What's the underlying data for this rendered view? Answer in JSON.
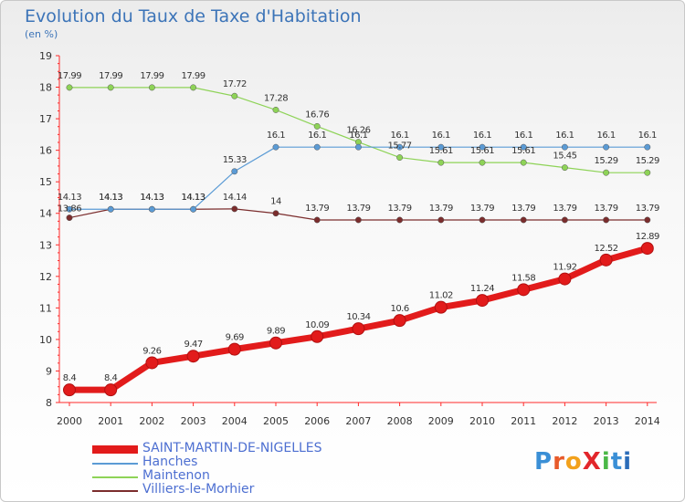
{
  "title": "Evolution du Taux de Taxe d'Habitation",
  "subtitle": "(en %)",
  "logo": {
    "text": "ProXiti",
    "letters": [
      "P",
      "r",
      "o",
      "X",
      "i",
      "t",
      "i"
    ],
    "colors": [
      "#3a8fd6",
      "#e85a2a",
      "#f2a11c",
      "#e2262b",
      "#4bb847",
      "#3a8fd6",
      "#2b6cb8"
    ]
  },
  "chart_data": {
    "type": "line",
    "x": [
      "2000",
      "2001",
      "2002",
      "2003",
      "2004",
      "2005",
      "2006",
      "2007",
      "2008",
      "2009",
      "2010",
      "2011",
      "2012",
      "2013",
      "2014"
    ],
    "ylim": [
      8,
      19
    ],
    "yticks": [
      "8",
      "9",
      "10",
      "11",
      "12",
      "13",
      "14",
      "15",
      "16",
      "17",
      "18",
      "19"
    ],
    "grid": false,
    "legend_position": "bottom-left",
    "series": [
      {
        "name": "SAINT-MARTIN-DE-NIGELLES",
        "color": "#e21b1b",
        "values": [
          8.4,
          8.4,
          9.26,
          9.47,
          9.69,
          9.89,
          10.09,
          10.34,
          10.6,
          11.02,
          11.24,
          11.58,
          11.92,
          12.52,
          12.89
        ],
        "labels": [
          "8.4",
          "8.4",
          "9.26",
          "9.47",
          "9.69",
          "9.89",
          "10.09",
          "10.34",
          "10.6",
          "11.02",
          "11.24",
          "11.58",
          "11.92",
          "12.52",
          "12.89"
        ]
      },
      {
        "name": "Hanches",
        "color": "#5b9bd5",
        "values": [
          14.13,
          14.13,
          14.13,
          14.13,
          15.33,
          16.1,
          16.1,
          16.1,
          16.1,
          16.1,
          16.1,
          16.1,
          16.1,
          16.1,
          16.1
        ],
        "labels": [
          "14.13",
          "14.13",
          "14.13",
          "14.13",
          "15.33",
          "16.1",
          "16.1",
          "16.1",
          "16.1",
          "16.1",
          "16.1",
          "16.1",
          "16.1",
          "16.1",
          "16.1"
        ]
      },
      {
        "name": "Maintenon",
        "color": "#8ed357",
        "values": [
          17.99,
          17.99,
          17.99,
          17.99,
          17.72,
          17.28,
          16.76,
          16.26,
          15.77,
          15.61,
          15.61,
          15.61,
          15.45,
          15.29,
          15.29
        ],
        "labels": [
          "17.99",
          "17.99",
          "17.99",
          "17.99",
          "17.72",
          "17.28",
          "16.76",
          "16.26",
          "15.77",
          "15.61",
          "15.61",
          "15.61",
          "15.45",
          "15.29",
          "15.29"
        ]
      },
      {
        "name": "Villiers-le-Morhier",
        "color": "#7b2d2d",
        "values": [
          13.86,
          14.13,
          14.13,
          14.13,
          14.14,
          14.0,
          13.79,
          13.79,
          13.79,
          13.79,
          13.79,
          13.79,
          13.79,
          13.79,
          13.79
        ],
        "labels": [
          "13.86",
          "14.13",
          "14.13",
          "14.13",
          "14.14",
          "14",
          "13.79",
          "13.79",
          "13.79",
          "13.79",
          "13.79",
          "13.79",
          "13.79",
          "13.79",
          "13.79"
        ]
      }
    ]
  }
}
